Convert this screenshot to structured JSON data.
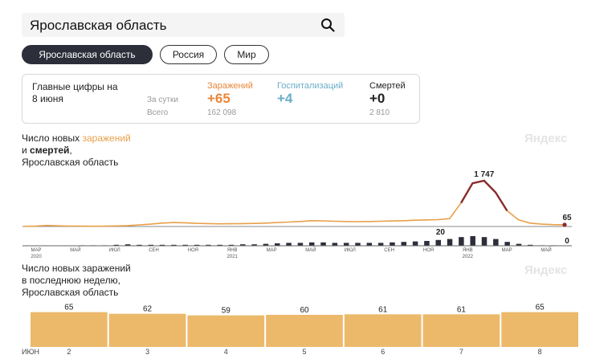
{
  "search": {
    "value": "Ярославская область"
  },
  "tabs": [
    {
      "label": "Ярославская область",
      "active": true
    },
    {
      "label": "Россия",
      "active": false
    },
    {
      "label": "Мир",
      "active": false
    }
  ],
  "summary": {
    "title_line1": "Главные цифры на",
    "title_line2": "8 июня",
    "row_day": "За сутки",
    "row_total": "Всего",
    "infections": {
      "label": "Заражений",
      "today": "+65",
      "total": "162 098",
      "color": "#e8873a"
    },
    "hospital": {
      "label": "Госпитализаций",
      "today": "+4",
      "total": "",
      "color": "#6aaec9"
    },
    "deaths": {
      "label": "Смертей",
      "today": "+0",
      "total": "2 810",
      "color": "#222222"
    }
  },
  "brand": "Яндекс",
  "chart1": {
    "title_pre": "Число новых ",
    "title_accent": "заражений",
    "title_line2_pre": "и ",
    "title_line2_bold": "смертей",
    "title_line2_post": ",",
    "title_line3": "Ярославская область",
    "peak_label": "1 747",
    "last_label": "65",
    "deaths_peak_label": "20",
    "deaths_last_label": "0",
    "x_ticks": [
      {
        "label": "МАР",
        "sub": "2020"
      },
      {
        "label": "МАЙ",
        "sub": ""
      },
      {
        "label": "ИЮЛ",
        "sub": ""
      },
      {
        "label": "СЕН",
        "sub": ""
      },
      {
        "label": "НОЯ",
        "sub": ""
      },
      {
        "label": "ЯНВ",
        "sub": "2021"
      },
      {
        "label": "МАР",
        "sub": ""
      },
      {
        "label": "МАЙ",
        "sub": ""
      },
      {
        "label": "ИЮЛ",
        "sub": ""
      },
      {
        "label": "СЕН",
        "sub": ""
      },
      {
        "label": "НОЯ",
        "sub": ""
      },
      {
        "label": "ЯНВ",
        "sub": "2022"
      },
      {
        "label": "МАР",
        "sub": ""
      },
      {
        "label": "МАЙ",
        "sub": ""
      }
    ]
  },
  "chart2": {
    "title_line1": "Число новых заражений",
    "title_line2": "в последнюю неделю,",
    "title_line3": "Ярославская область",
    "month_label": "ИЮН"
  },
  "chart_data": [
    {
      "type": "line",
      "series": [
        {
          "name": "заражений",
          "values": [
            5,
            15,
            40,
            25,
            15,
            12,
            10,
            12,
            20,
            35,
            60,
            90,
            130,
            150,
            140,
            120,
            110,
            100,
            105,
            110,
            115,
            130,
            150,
            170,
            190,
            220,
            215,
            200,
            190,
            185,
            190,
            200,
            210,
            220,
            240,
            250,
            260,
            300,
            900,
            1650,
            1747,
            1300,
            600,
            250,
            130,
            90,
            70,
            65
          ],
          "color": "#e8a04a"
        },
        {
          "name": "смертей",
          "values": [
            0,
            0,
            0,
            0,
            0,
            1,
            1,
            1,
            2,
            3,
            2,
            2,
            2,
            2,
            2,
            2,
            2,
            2,
            2,
            3,
            3,
            4,
            5,
            6,
            6,
            7,
            7,
            6,
            6,
            6,
            6,
            6,
            7,
            8,
            9,
            10,
            12,
            14,
            18,
            20,
            18,
            14,
            8,
            4,
            2,
            1,
            1,
            0
          ],
          "color": "#2c2f3a"
        }
      ],
      "ylim": [
        0,
        1900
      ]
    },
    {
      "type": "bar",
      "categories": [
        "2",
        "3",
        "4",
        "5",
        "6",
        "7",
        "8"
      ],
      "values": [
        65,
        62,
        59,
        60,
        61,
        61,
        65
      ],
      "color": "#ecb96b",
      "ylim": [
        0,
        72
      ]
    }
  ]
}
